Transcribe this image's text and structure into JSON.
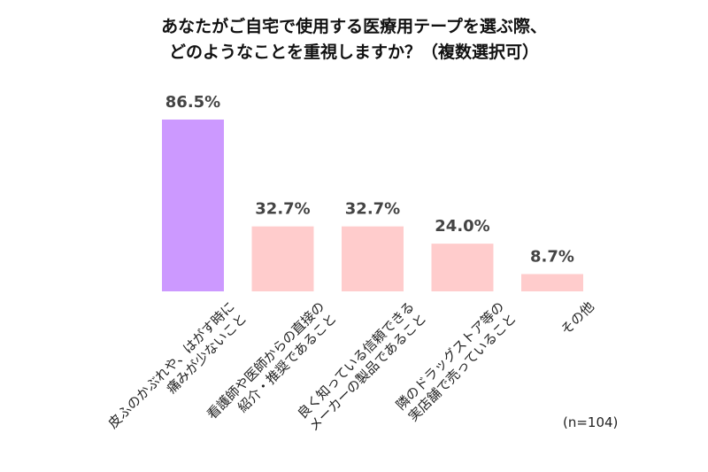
{
  "chart_data": {
    "type": "bar",
    "title_lines": [
      "あなたがご自宅で使用する医療用テープを選ぶ際、",
      "どのようなことを重視しますか？（複数選択可）"
    ],
    "categories": [
      [
        "皮ふのかぶれや、はがす時に",
        "痛みが少ないこと"
      ],
      [
        "看護師や医師からの直接の",
        "紹介・推奨であること"
      ],
      [
        "良く知っている信頼できる",
        "メーカーの製品であること"
      ],
      [
        "隣のドラッグストア等の",
        "実店舗で売っていること"
      ],
      [
        "その他"
      ]
    ],
    "values": [
      86.5,
      32.7,
      32.7,
      24.0,
      8.7
    ],
    "value_labels": [
      "86.5%",
      "32.7%",
      "32.7%",
      "24.0%",
      "8.7%"
    ],
    "bar_colors": [
      "#cc99ff",
      "#ffcccc",
      "#ffcccc",
      "#ffcccc",
      "#ffcccc"
    ],
    "ylim": [
      0,
      86.5
    ],
    "grid": false,
    "note": "(n=104)"
  }
}
